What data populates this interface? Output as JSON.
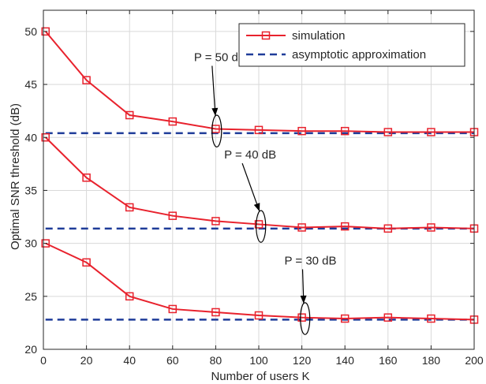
{
  "chart_data": {
    "type": "line",
    "xlabel": "Number of users K",
    "ylabel": "Optimal SNR threshold (dB)",
    "xlim": [
      0,
      200
    ],
    "ylim": [
      20,
      52
    ],
    "xticks": [
      0,
      20,
      40,
      60,
      80,
      100,
      120,
      140,
      160,
      180,
      200
    ],
    "yticks": [
      20,
      25,
      30,
      35,
      40,
      45,
      50
    ],
    "grid": true,
    "legend_position": "top-right",
    "legend": [
      {
        "label": "simulation",
        "style": "solid-square",
        "color": "#e8222d"
      },
      {
        "label": "asymptotic approximation",
        "style": "dashed",
        "color": "#1f3c99"
      }
    ],
    "series": [
      {
        "group": "P = 50 dB",
        "x": [
          1,
          20,
          40,
          60,
          80,
          100,
          120,
          140,
          160,
          180,
          200
        ],
        "simulation": [
          50.0,
          45.4,
          42.1,
          41.5,
          40.8,
          40.7,
          40.6,
          40.6,
          40.5,
          40.5,
          40.5
        ],
        "asymptotic": 40.4
      },
      {
        "group": "P = 40 dB",
        "x": [
          1,
          20,
          40,
          60,
          80,
          100,
          120,
          140,
          160,
          180,
          200
        ],
        "simulation": [
          40.0,
          36.2,
          33.4,
          32.6,
          32.1,
          31.8,
          31.5,
          31.6,
          31.4,
          31.5,
          31.4
        ],
        "asymptotic": 31.4
      },
      {
        "group": "P = 30 dB",
        "x": [
          1,
          20,
          40,
          60,
          80,
          100,
          120,
          140,
          160,
          180,
          200
        ],
        "simulation": [
          30.0,
          28.2,
          25.0,
          23.8,
          23.5,
          23.2,
          23.0,
          22.9,
          23.0,
          22.9,
          22.8
        ],
        "asymptotic": 22.8
      }
    ],
    "annotations": [
      {
        "text": "P = 50 dB",
        "label_at": [
          82,
          47.2
        ],
        "ellipse_at": [
          80.5,
          40.6
        ],
        "rx": 2.2,
        "ry": 1.5
      },
      {
        "text": "P = 40 dB",
        "label_at": [
          96,
          38.0
        ],
        "ellipse_at": [
          101,
          31.6
        ],
        "rx": 2.2,
        "ry": 1.5
      },
      {
        "text": "P = 30 dB",
        "label_at": [
          124,
          28.0
        ],
        "ellipse_at": [
          121.5,
          22.9
        ],
        "rx": 2.2,
        "ry": 1.5
      }
    ],
    "colors": {
      "simulation": "#e8222d",
      "asymptotic": "#1f3c99",
      "grid": "#d9d9d9",
      "axis": "#262626"
    }
  }
}
